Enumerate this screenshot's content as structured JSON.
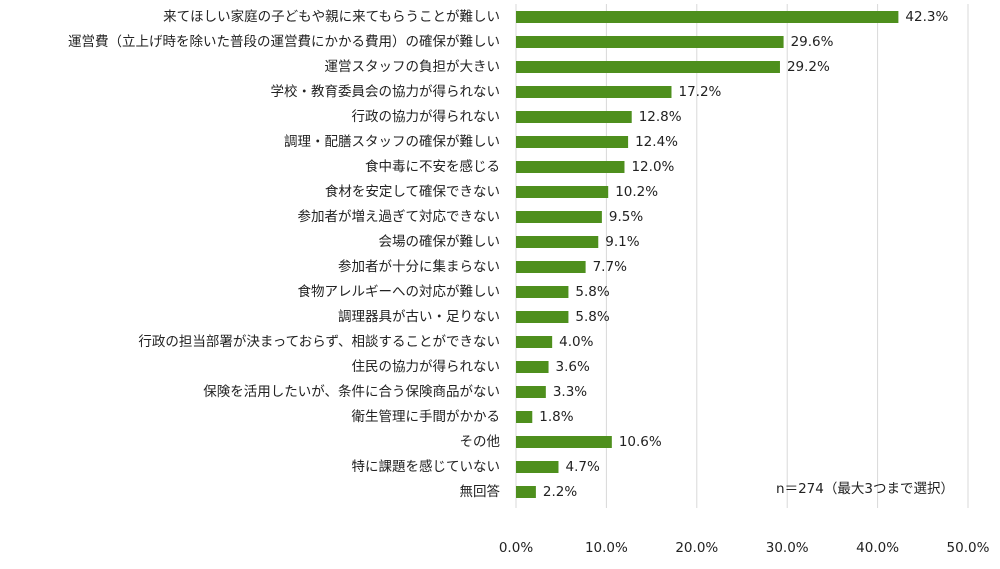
{
  "chart_data": {
    "type": "hbar",
    "categories": [
      "来てほしい家庭の子どもや親に来てもらうことが難しい",
      "運営費（立上げ時を除いた普段の運営費にかかる費用）の確保が難しい",
      "運営スタッフの負担が大きい",
      "学校・教育委員会の協力が得られない",
      "行政の協力が得られない",
      "調理・配膳スタッフの確保が難しい",
      "食中毒に不安を感じる",
      "食材を安定して確保できない",
      "参加者が増え過ぎて対応できない",
      "会場の確保が難しい",
      "参加者が十分に集まらない",
      "食物アレルギーへの対応が難しい",
      "調理器具が古い・足りない",
      "行政の担当部署が決まっておらず、相談することができない",
      "住民の協力が得られない",
      "保険を活用したいが、条件に合う保険商品がない",
      "衛生管理に手間がかかる",
      "その他",
      "特に課題を感じていない",
      "無回答"
    ],
    "values": [
      42.3,
      29.6,
      29.2,
      17.2,
      12.8,
      12.4,
      12.0,
      10.2,
      9.5,
      9.1,
      7.7,
      5.8,
      5.8,
      4.0,
      3.6,
      3.3,
      1.8,
      10.6,
      4.7,
      2.2
    ],
    "value_labels": [
      "42.3%",
      "29.6%",
      "29.2%",
      "17.2%",
      "12.8%",
      "12.4%",
      "12.0%",
      "10.2%",
      "9.5%",
      "9.1%",
      "7.7%",
      "5.8%",
      "5.8%",
      "4.0%",
      "3.6%",
      "3.3%",
      "1.8%",
      "10.6%",
      "4.7%",
      "2.2%"
    ],
    "color": "#4e8f1d",
    "xlim": [
      0,
      50
    ],
    "xticks": [
      {
        "value": 0,
        "label": "0.0%"
      },
      {
        "value": 10,
        "label": "10.0%"
      },
      {
        "value": 20,
        "label": "20.0%"
      },
      {
        "value": 30,
        "label": "30.0%"
      },
      {
        "value": 40,
        "label": "40.0%"
      },
      {
        "value": 50,
        "label": "50.0%"
      }
    ],
    "grid": true,
    "annotation": "n＝274（最大3つまで選択）"
  }
}
